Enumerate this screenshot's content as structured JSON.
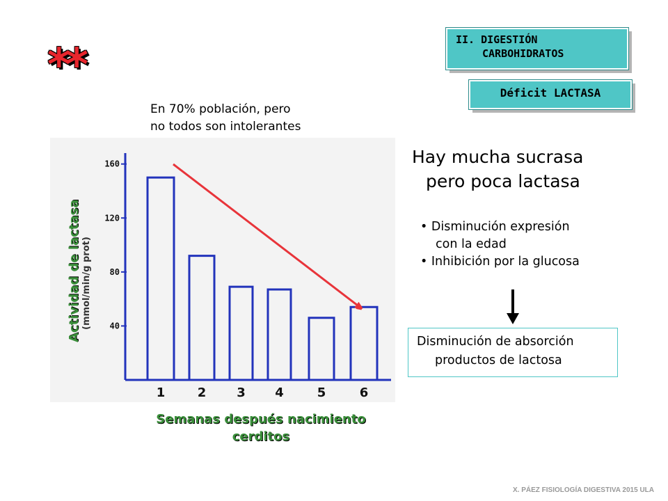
{
  "stars": "**",
  "section": {
    "line1": "II.  DIGESTIÓN",
    "line2": "CARBOHIDRATOS"
  },
  "tag": "Déficit LACTASA",
  "note": {
    "line1": "En 70% población, pero",
    "line2": "no todos son intolerantes"
  },
  "heading": {
    "line1": "Hay mucha sucrasa",
    "line2": "pero poca lactasa"
  },
  "bullets": [
    {
      "line1": "• Disminución expresión",
      "line2": "con la edad"
    },
    {
      "line1": "• Inhibición por la glucosa"
    }
  ],
  "result": {
    "line1": "Disminución de absorción",
    "line2": "productos de lactosa"
  },
  "footer": "X. PÁEZ   FISIOLOGÍA DIGESTIVA 2015 ULA",
  "chart_data": {
    "type": "bar",
    "categories": [
      "1",
      "2",
      "3",
      "4",
      "5",
      "6"
    ],
    "values": [
      150,
      92,
      69,
      67,
      46,
      54
    ],
    "ylim": [
      0,
      165
    ],
    "yticks": [
      "160",
      "120",
      "80",
      "40"
    ],
    "ylabel": "Actividad de lactasa",
    "ylabel_units": "(mmol/min/g prot)",
    "xlabel_line1": "Semanas después nacimiento",
    "xlabel_line2": "cerditos",
    "bar_color": "#2233bb",
    "trend_arrow_color": "#e8343a"
  }
}
